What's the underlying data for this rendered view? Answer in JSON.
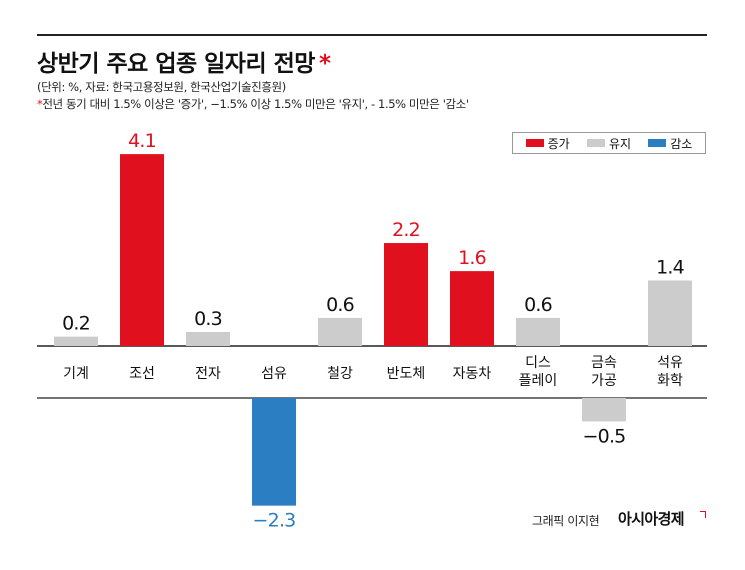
{
  "header": {
    "title": "상반기 주요 업종 일자리 전망",
    "title_mark": "*",
    "subtitle_source": "(단위: %, 자료: 한국고용정보원, 한국산업기술진흥원)",
    "footnote_mark": "*",
    "footnote": "전년 동기 대비 1.5% 이상은 '증가', −1.5% 이상 1.5% 미만은 '유지',  - 1.5% 미만은 '감소'"
  },
  "legend": [
    {
      "label": "증가",
      "color": "#e0101e"
    },
    {
      "label": "유지",
      "color": "#cccccc"
    },
    {
      "label": "감소",
      "color": "#2b7ec1"
    }
  ],
  "credit": {
    "graphic": "그래픽 이지현",
    "brand": "아시아경제"
  },
  "chart_data": {
    "type": "bar",
    "categories": [
      "기계",
      "조선",
      "전자",
      "섬유",
      "철강",
      "반도체",
      "자동차",
      "디스\n플레이",
      "금속\n가공",
      "석유\n화학"
    ],
    "values": [
      0.2,
      4.1,
      0.3,
      -2.3,
      0.6,
      2.2,
      1.6,
      0.6,
      -0.5,
      1.4
    ],
    "value_labels": [
      "0.2",
      "4.1",
      "0.3",
      "−2.3",
      "0.6",
      "2.2",
      "1.6",
      "0.6",
      "−0.5",
      "1.4"
    ],
    "status": [
      "유지",
      "증가",
      "유지",
      "감소",
      "유지",
      "증가",
      "증가",
      "유지",
      "유지",
      "유지"
    ],
    "colors": {
      "증가": "#e0101e",
      "유지": "#cccccc",
      "감소": "#2b7ec1"
    },
    "label_colors": {
      "증가": "#e0101e",
      "유지": "#111111",
      "감소": "#2b7ec1"
    },
    "ylim": [
      -2.3,
      4.1
    ],
    "legend_position": "top-right",
    "grid": false
  }
}
